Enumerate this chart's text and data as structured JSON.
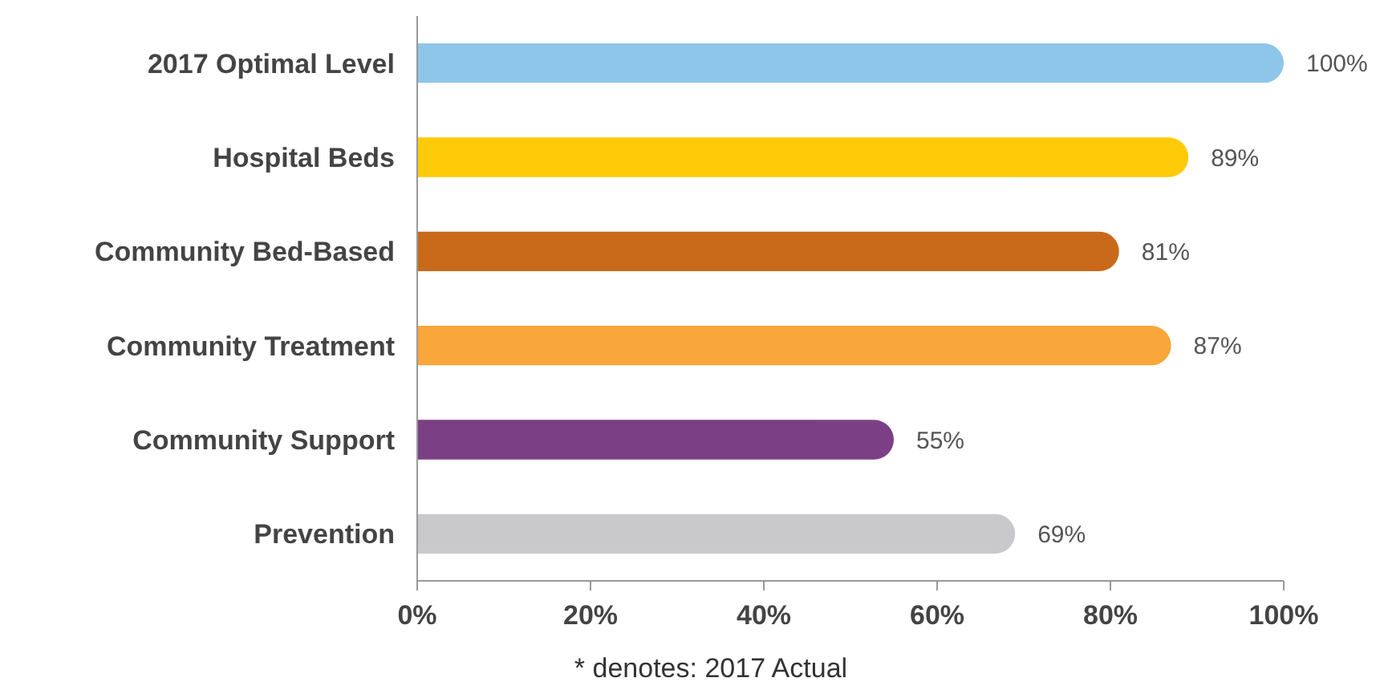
{
  "chart_data": {
    "type": "bar",
    "orientation": "horizontal",
    "categories": [
      "2017 Optimal Level",
      "Hospital Beds",
      "Community Bed-Based",
      "Community Treatment",
      "Community Support",
      "Prevention"
    ],
    "values": [
      100,
      89,
      81,
      87,
      55,
      69
    ],
    "colors": [
      "#8ec6ea",
      "#ffcb08",
      "#c96a1b",
      "#f9a63a",
      "#7b3f85",
      "#c9c9cb"
    ],
    "value_labels": [
      "100%",
      "89%",
      "81%",
      "87%",
      "55%",
      "69%"
    ],
    "xlim": [
      0,
      100
    ],
    "xticks": [
      {
        "value": 0,
        "label": "0%"
      },
      {
        "value": 20,
        "label": "20%"
      },
      {
        "value": 40,
        "label": "40%"
      },
      {
        "value": 60,
        "label": "60%"
      },
      {
        "value": 80,
        "label": "80%"
      },
      {
        "value": 100,
        "label": "100%"
      }
    ],
    "annotations": [
      "* denotes: 2017 Actual"
    ]
  }
}
